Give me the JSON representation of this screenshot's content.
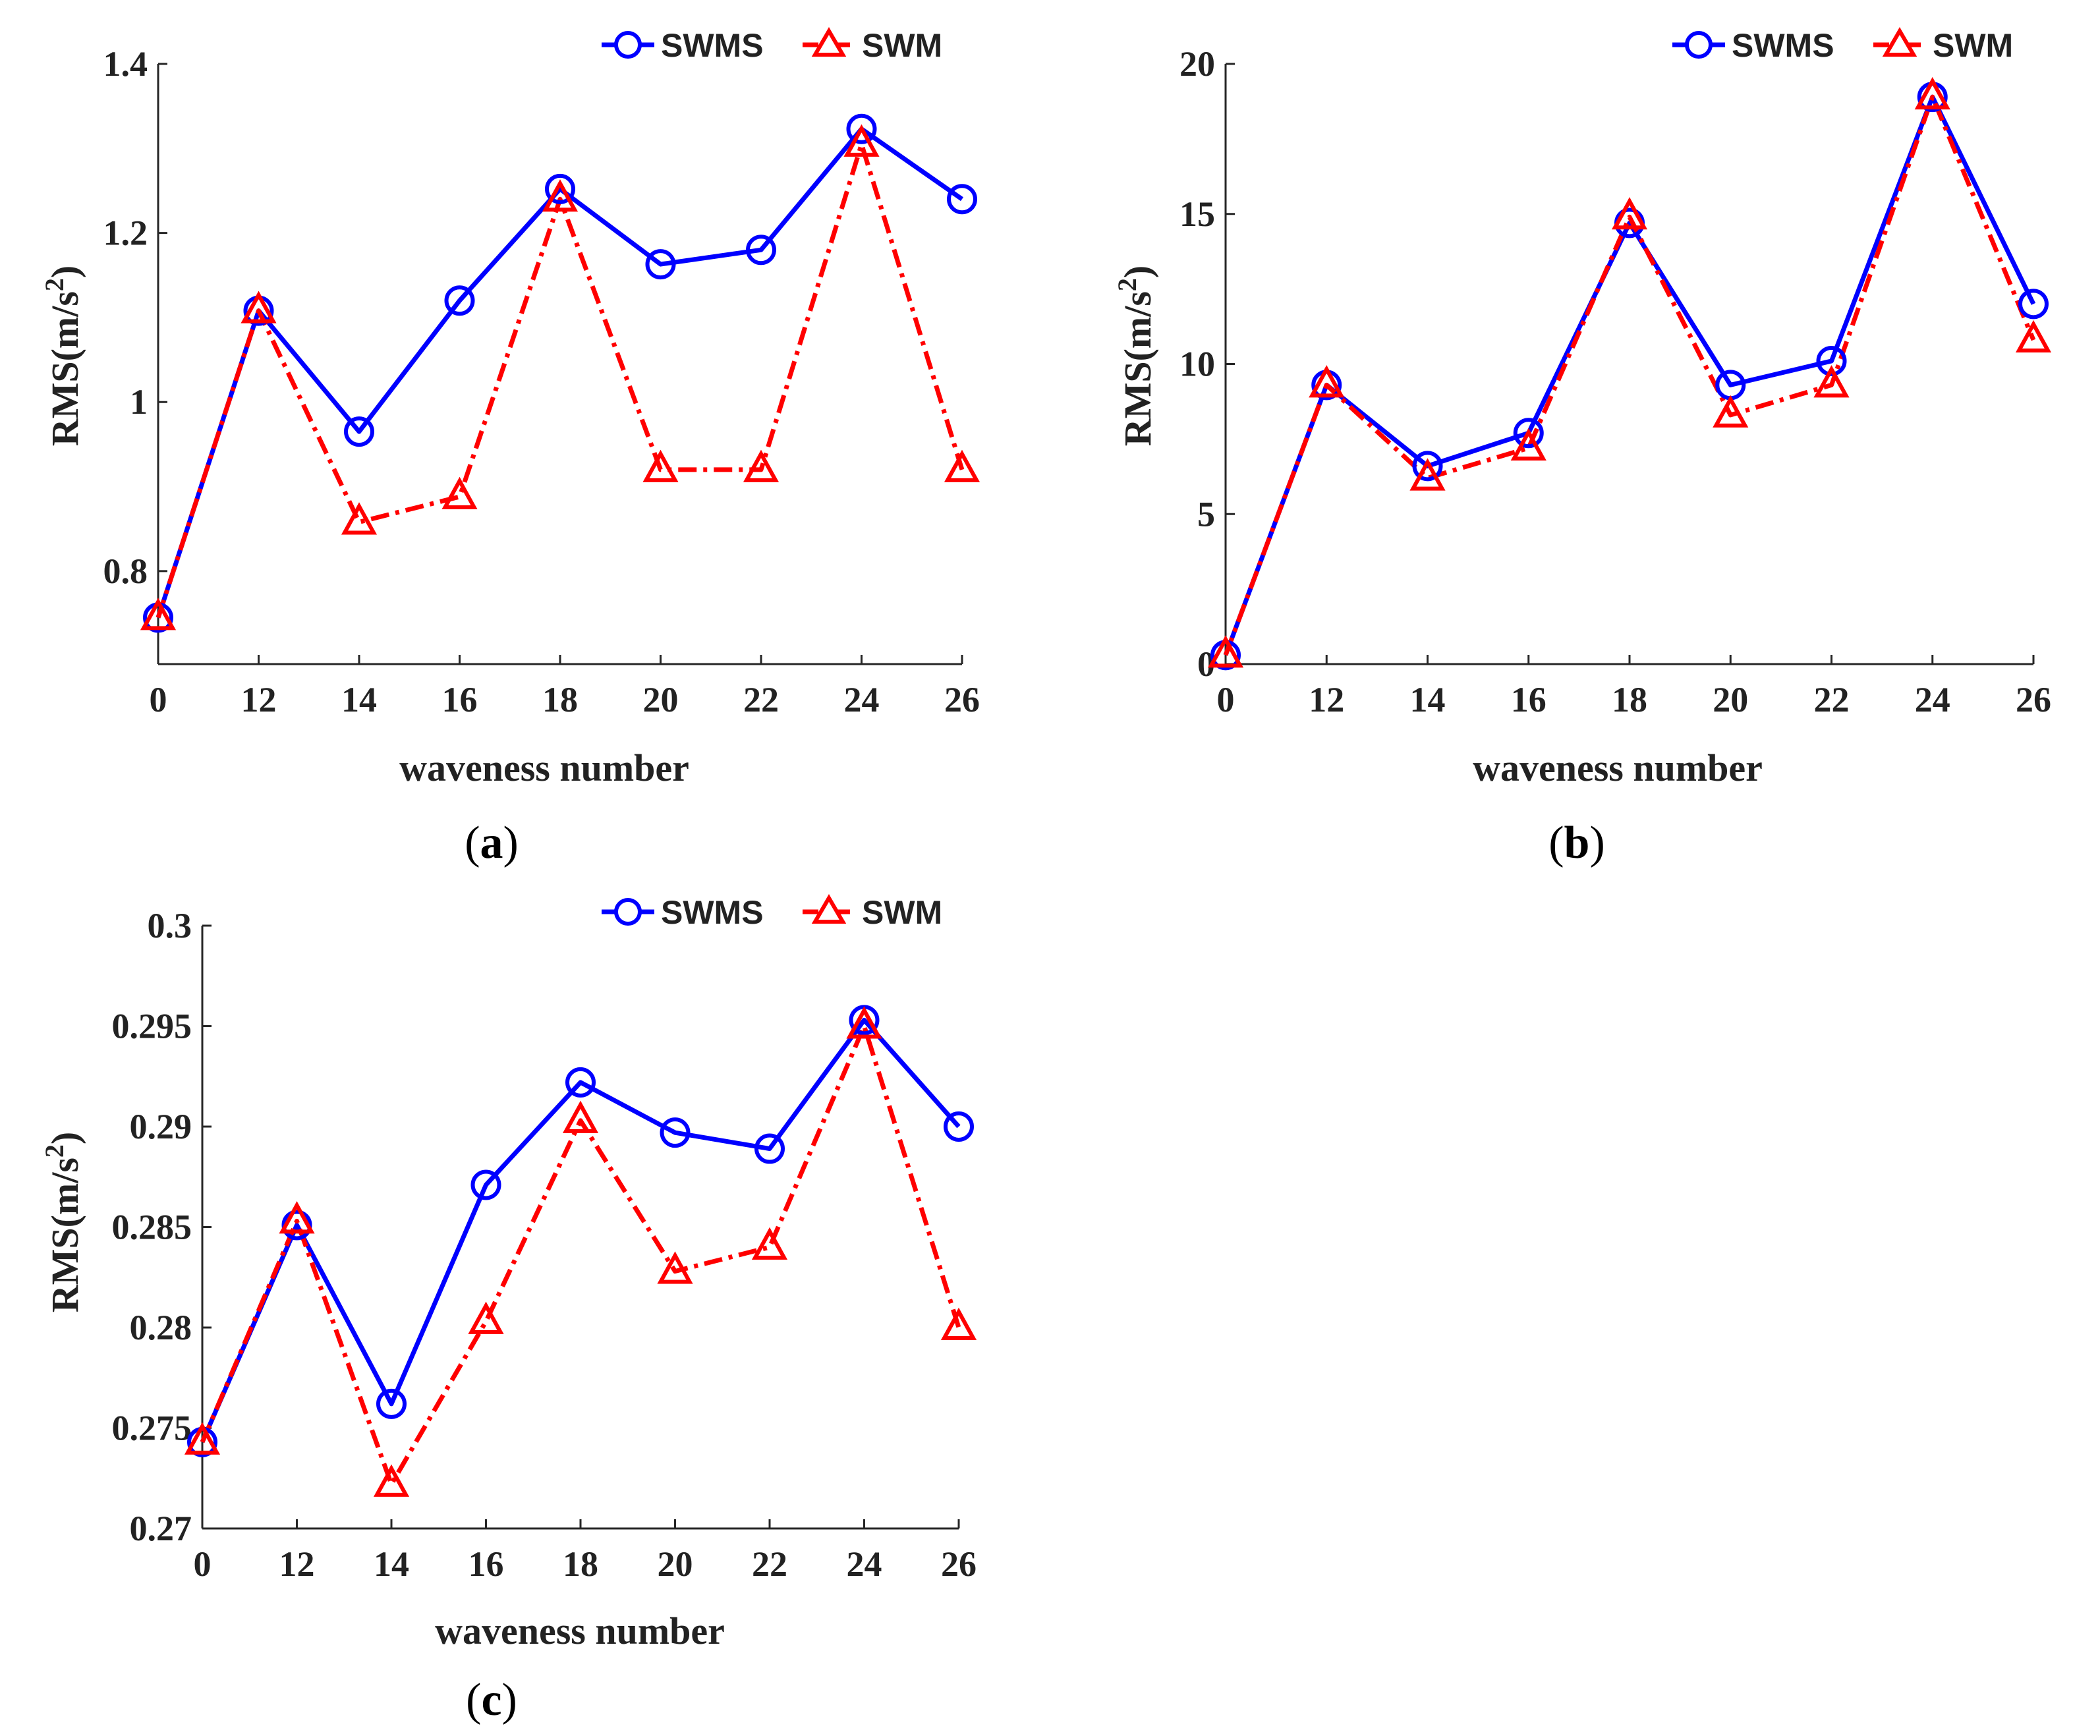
{
  "chart_data": [
    {
      "type": "line",
      "panel_label": "a",
      "xlabel": "waveness number",
      "ylabel_main": "RMS(m/s",
      "ylabel_sup": "2",
      "ylabel_close": ")",
      "categories": [
        "0",
        "12",
        "14",
        "16",
        "18",
        "20",
        "22",
        "24",
        "26"
      ],
      "yticks": [
        "0.8",
        "1",
        "1.2",
        "1.4"
      ],
      "ytick_values": [
        0.8,
        1.0,
        1.2,
        1.4
      ],
      "ylim": [
        0.69,
        1.4
      ],
      "legend_position": "top-right",
      "series": [
        {
          "name": "SWMS",
          "color": "#0000ff",
          "marker": "circle",
          "line": "solid",
          "values": [
            0.745,
            1.108,
            0.965,
            1.12,
            1.252,
            1.163,
            1.18,
            1.323,
            1.24
          ]
        },
        {
          "name": "SWM",
          "color": "#ff0000",
          "marker": "triangle",
          "line": "dashdot",
          "values": [
            0.745,
            1.108,
            0.858,
            0.888,
            1.24,
            0.92,
            0.92,
            1.305,
            0.92
          ]
        }
      ]
    },
    {
      "type": "line",
      "panel_label": "b",
      "xlabel": "waveness number",
      "ylabel_main": "RMS(m/s",
      "ylabel_sup": "2",
      "ylabel_close": ")",
      "categories": [
        "0",
        "12",
        "14",
        "16",
        "18",
        "20",
        "22",
        "24",
        "26"
      ],
      "yticks": [
        "0",
        "5",
        "10",
        "15",
        "20"
      ],
      "ytick_values": [
        0,
        5,
        10,
        15,
        20
      ],
      "ylim": [
        0,
        20
      ],
      "legend_position": "top-right",
      "series": [
        {
          "name": "SWMS",
          "color": "#0000ff",
          "marker": "circle",
          "line": "solid",
          "values": [
            0.3,
            9.3,
            6.6,
            7.7,
            14.7,
            9.3,
            10.1,
            18.9,
            12.0
          ]
        },
        {
          "name": "SWM",
          "color": "#ff0000",
          "marker": "triangle",
          "line": "dashdot",
          "values": [
            0.3,
            9.3,
            6.2,
            7.2,
            14.9,
            8.3,
            9.3,
            18.9,
            10.8
          ]
        }
      ]
    },
    {
      "type": "line",
      "panel_label": "c",
      "xlabel": "waveness number",
      "ylabel_main": "RMS(m/s",
      "ylabel_sup": "2",
      "ylabel_close": ")",
      "categories": [
        "0",
        "12",
        "14",
        "16",
        "18",
        "20",
        "22",
        "24",
        "26"
      ],
      "yticks": [
        "0.27",
        "0.275",
        "0.28",
        "0.285",
        "0.29",
        "0.295",
        "0.3"
      ],
      "ytick_values": [
        0.27,
        0.275,
        0.28,
        0.285,
        0.29,
        0.295,
        0.3
      ],
      "ylim": [
        0.27,
        0.3
      ],
      "legend_position": "top-right",
      "series": [
        {
          "name": "SWMS",
          "color": "#0000ff",
          "marker": "circle",
          "line": "solid",
          "values": [
            0.2743,
            0.2851,
            0.2762,
            0.2871,
            0.2922,
            0.2897,
            0.2889,
            0.2953,
            0.29
          ]
        },
        {
          "name": "SWM",
          "color": "#ff0000",
          "marker": "triangle",
          "line": "dashdot",
          "values": [
            0.2743,
            0.2853,
            0.2722,
            0.2803,
            0.2903,
            0.2828,
            0.284,
            0.295,
            0.28
          ]
        }
      ]
    }
  ]
}
